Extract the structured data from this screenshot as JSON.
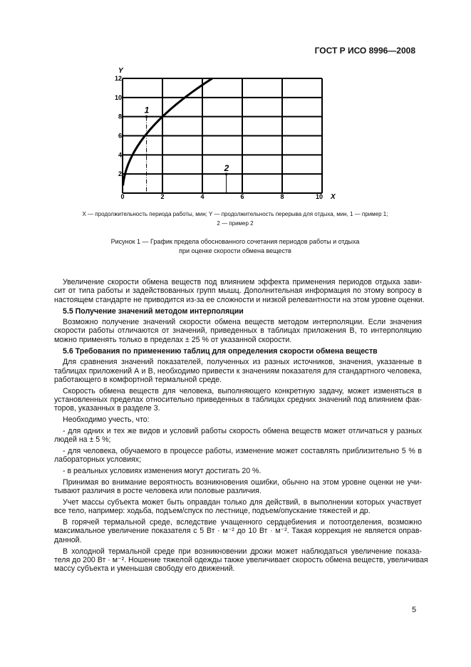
{
  "header": {
    "doc_id": "ГОСТ Р ИСО 8996—2008"
  },
  "chart_data": {
    "type": "line",
    "xlabel": "X",
    "ylabel": "Y",
    "xlim": [
      0,
      10
    ],
    "ylim": [
      0,
      12
    ],
    "x_ticks": [
      "0",
      "2",
      "4",
      "6",
      "8",
      "10"
    ],
    "y_ticks": [
      "2",
      "4",
      "6",
      "8",
      "10",
      "12"
    ],
    "grid": true,
    "series": [
      {
        "x": [
          0.02,
          0.125,
          0.5,
          1,
          1.5,
          2,
          3,
          4,
          4.5
        ],
        "y": [
          0,
          2,
          4,
          5.66,
          6.93,
          8,
          9.8,
          11.3,
          12
        ]
      }
    ],
    "annotations": [
      {
        "label": "1",
        "x": 1.2,
        "y": 8,
        "guide": "vertical dash-dot"
      },
      {
        "label": "2",
        "x": 5.2,
        "y": 2,
        "guide": "horizontal dash-dot"
      }
    ]
  },
  "figure": {
    "legend_line1": "X — продолжительность периода работы, мин; Y — продолжительность перерыва для отдыха, мин, 1 — пример 1;",
    "legend_line2": "2 — пример 2",
    "caption_line1": "Рисунок 1 — График предела обоснованного сочетания периодов работы и отдыха",
    "caption_line2": "при оценке скорости обмена веществ"
  },
  "body": {
    "p1": [
      "Увеличение скорости обмена веществ под влиянием эффекта применения периодов отдыха зави-",
      "сит от типа работы и задействованных групп мышц. Дополнительная информация по этому вопросу в",
      "настоящем стандарте не приводится из-за ее сложности и низкой релевантности на этом уровне оценки."
    ],
    "h55": "5.5  Получение значений методом интерполяции",
    "p2": [
      "Возможно получение значений скорости обмена веществ методом интерполяции. Если значения",
      "скорости работы отличаются от значений, приведенных в таблицах приложения В, то интерполяцию",
      "можно применять только в пределах ± 25 % от указанной скорости."
    ],
    "h56": "5.6  Требования по применению таблиц для определения скорости обмена веществ",
    "p3": [
      "Для сравнения значений показателей, полученных из разных источников, значения, указанные в",
      "таблицах приложений А и В, необходимо привести к значениям показателя для стандартного человека,",
      "работающего в комфортной термальной среде."
    ],
    "p4": [
      "Скорость обмена веществ для человека, выполняющего конкретную задачу, может изменяться в",
      "установленных пределах относительно приведенных в таблицах средних значений под влиянием фак-",
      "торов, указанных в разделе 3."
    ],
    "p5": [
      "Необходимо учесть, что:"
    ],
    "p6": [
      "- для одних и тех же видов и условий работы скорость обмена веществ может отличаться у разных",
      "людей на ± 5 %;"
    ],
    "p7": [
      "- для человека, обучаемого в процессе работы, изменение может составлять приблизительно 5 % в",
      "лабораторных условиях;"
    ],
    "p8": [
      "- в реальных условиях изменения могут достигать 20 %."
    ],
    "p9": [
      "Принимая во внимание вероятность возникновения ошибки, обычно на этом уровне оценки не учи-",
      "тывают различия в росте человека или половые различия."
    ],
    "p10": [
      "Учет массы субъекта может быть оправдан только для действий, в выполнении которых участвует",
      "все тело, например: ходьба, подъем/спуск по лестнице, подъем/опускание тяжестей и др."
    ],
    "p11": [
      "В горячей термальной среде, вследствие учащенного сердцебиения и потоотделения, возможно",
      "максимальное увеличение показателя с 5 Вт · м⁻² до 10 Вт · м⁻². Такая коррекция не является оправ-",
      "данной."
    ],
    "p12": [
      "В холодной термальной среде при возникновении дрожи может наблюдаться увеличение показа-",
      "теля до 200 Вт · м⁻². Ношение тяжелой одежды также увеличивает скорость обмена веществ, увеличивая",
      "массу субъекта и уменьшая свободу его движений."
    ]
  },
  "footer": {
    "page_number": "5"
  }
}
